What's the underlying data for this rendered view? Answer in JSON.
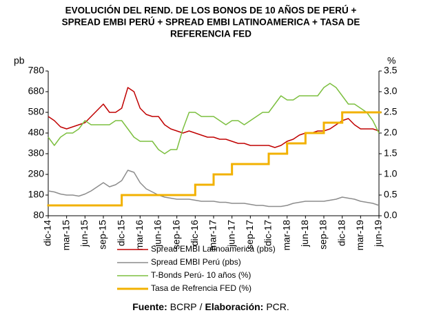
{
  "chart_data": {
    "type": "line",
    "title": [
      "EVOLUCIÓN DEL REND. DE LOS BONOS DE 10 AÑOS DE PERÚ +",
      "SPREAD EMBI PERÚ + SPREAD EMBI LATINOAMERICA + TASA DE",
      "REFERENCIA FED"
    ],
    "ylabel": "pb",
    "y2label": "%",
    "categories": [
      "dic-14",
      null,
      null,
      "mar-15",
      null,
      null,
      "jun-15",
      null,
      null,
      "sep-15",
      null,
      null,
      "dic-15",
      null,
      null,
      "mar-16",
      null,
      null,
      "jun-16",
      null,
      null,
      "sep-16",
      null,
      null,
      "dic-16",
      null,
      null,
      "mar-17",
      null,
      null,
      "jun-17",
      null,
      null,
      "sep-17",
      null,
      null,
      "dic-17",
      null,
      null,
      "mar-18",
      null,
      null,
      "jun-18",
      null,
      null,
      "sep-18",
      null,
      null,
      "dic-18",
      null,
      null,
      "mar-19",
      null,
      null,
      "jun-19"
    ],
    "ylim": [
      80,
      780
    ],
    "yticks": [
      80,
      180,
      280,
      380,
      480,
      580,
      680,
      780
    ],
    "y2lim": [
      0,
      3.5
    ],
    "y2ticks": [
      {
        "value": 0,
        "label": "0.0"
      },
      0.5,
      {
        "value": 1,
        "label": "1.0"
      },
      1.5,
      {
        "value": 2,
        "label": "2.0"
      },
      2.5,
      {
        "value": 3,
        "label": "3.0"
      },
      3.5
    ],
    "series": [
      {
        "name": "Spread EMBI Latinoamerica (pbs)",
        "color": "#c00000",
        "width": 1.5,
        "values": [
          560,
          540,
          510,
          500,
          510,
          520,
          530,
          560,
          590,
          620,
          580,
          580,
          600,
          700,
          680,
          600,
          570,
          560,
          560,
          520,
          500,
          490,
          480,
          490,
          480,
          470,
          460,
          460,
          450,
          450,
          440,
          430,
          430,
          420,
          420,
          420,
          420,
          410,
          420,
          440,
          450,
          470,
          480,
          480,
          490,
          490,
          500,
          520,
          540,
          550,
          520,
          500,
          500,
          500,
          490
        ]
      },
      {
        "name": "Spread EMBI Perú (pbs)",
        "color": "#8c8c8c",
        "width": 1.5,
        "values": [
          200,
          195,
          185,
          180,
          180,
          175,
          185,
          200,
          220,
          240,
          220,
          230,
          250,
          300,
          290,
          240,
          210,
          195,
          180,
          170,
          165,
          160,
          160,
          160,
          155,
          150,
          150,
          150,
          145,
          145,
          140,
          140,
          140,
          135,
          130,
          130,
          125,
          125,
          125,
          130,
          140,
          145,
          150,
          150,
          150,
          150,
          155,
          160,
          170,
          165,
          160,
          150,
          145,
          140,
          130
        ]
      },
      {
        "name": "T-Bonds Perú- 10 años (%)",
        "color": "#7cbf3f",
        "width": 1.5,
        "axis": "y2",
        "values": [
          1.9,
          1.7,
          1.9,
          2.0,
          2.0,
          2.1,
          2.3,
          2.2,
          2.2,
          2.2,
          2.2,
          2.3,
          2.3,
          2.1,
          1.9,
          1.8,
          1.8,
          1.8,
          1.6,
          1.5,
          1.6,
          1.6,
          2.1,
          2.5,
          2.5,
          2.4,
          2.4,
          2.4,
          2.3,
          2.2,
          2.3,
          2.3,
          2.2,
          2.3,
          2.4,
          2.5,
          2.5,
          2.7,
          2.9,
          2.8,
          2.8,
          2.9,
          2.9,
          2.9,
          2.9,
          3.1,
          3.2,
          3.1,
          2.9,
          2.7,
          2.7,
          2.6,
          2.5,
          2.3,
          2.0
        ]
      },
      {
        "name": "Tasa de Refrencia FED (%)",
        "color": "#f2b100",
        "width": 3,
        "axis": "y2",
        "step": true,
        "values": [
          0.25,
          0.25,
          0.25,
          0.25,
          0.25,
          0.25,
          0.25,
          0.25,
          0.25,
          0.25,
          0.25,
          0.25,
          0.5,
          0.5,
          0.5,
          0.5,
          0.5,
          0.5,
          0.5,
          0.5,
          0.5,
          0.5,
          0.5,
          0.5,
          0.75,
          0.75,
          0.75,
          1.0,
          1.0,
          1.0,
          1.25,
          1.25,
          1.25,
          1.25,
          1.25,
          1.25,
          1.5,
          1.5,
          1.5,
          1.75,
          1.75,
          1.75,
          2.0,
          2.0,
          2.0,
          2.25,
          2.25,
          2.25,
          2.5,
          2.5,
          2.5,
          2.5,
          2.5,
          2.5,
          2.5
        ]
      }
    ],
    "source": [
      {
        "text": "Fuente:",
        "bold": true
      },
      {
        "text": "BCRP"
      },
      {
        "text": "/"
      },
      {
        "text": "Elaboración:",
        "bold": true
      },
      {
        "text": "PCR."
      }
    ]
  }
}
